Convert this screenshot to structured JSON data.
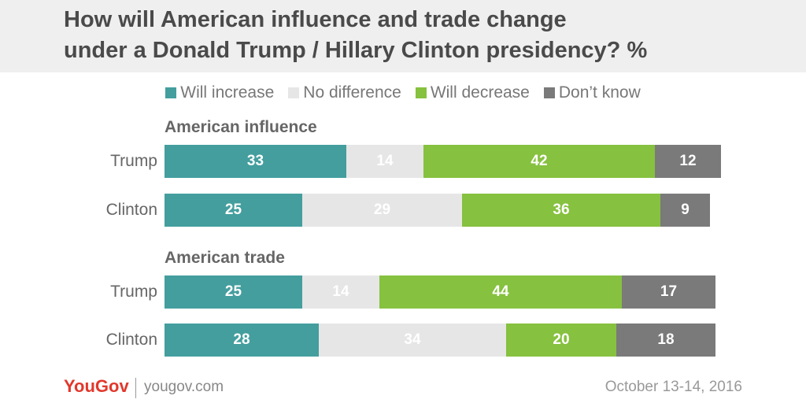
{
  "title_line1": "How will American influence and trade change",
  "title_line2": "under a Donald Trump / Hillary Clinton presidency? %",
  "footer": {
    "logo": "YouGov",
    "url": "yougov.com",
    "date": "October 13-14, 2016"
  },
  "colors": {
    "will_increase": "#449e9e",
    "no_difference": "#e6e6e6",
    "will_decrease": "#86c13f",
    "dont_know": "#7a7a7a"
  },
  "chart_data": {
    "type": "bar",
    "orientation": "horizontal",
    "stacked": true,
    "legend": {
      "placement": "top",
      "entries": [
        "Will increase",
        "No difference",
        "Will decrease",
        "Don’t know"
      ]
    },
    "groups": [
      {
        "label": "American influence",
        "rows": [
          {
            "label": "Trump",
            "values": [
              33,
              14,
              42,
              12
            ]
          },
          {
            "label": "Clinton",
            "values": [
              25,
              29,
              36,
              9
            ]
          }
        ]
      },
      {
        "label": "American trade",
        "rows": [
          {
            "label": "Trump",
            "values": [
              25,
              14,
              44,
              17
            ]
          },
          {
            "label": "Clinton",
            "values": [
              28,
              34,
              20,
              18
            ]
          }
        ]
      }
    ]
  }
}
